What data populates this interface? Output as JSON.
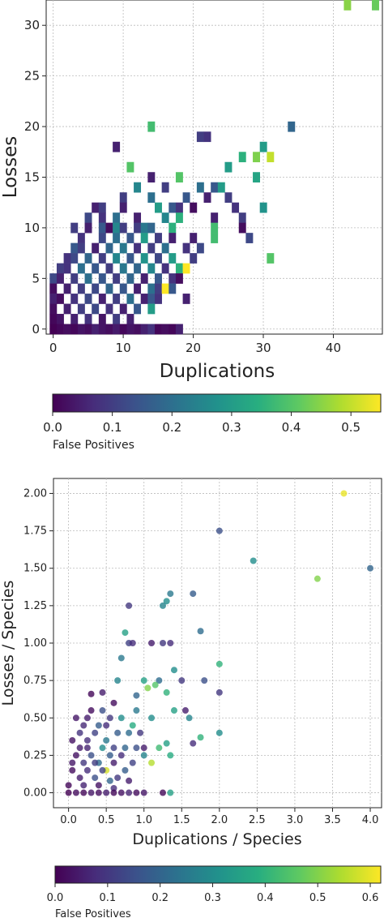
{
  "chart_data": [
    {
      "type": "heatmap",
      "xlabel": "Duplications",
      "ylabel": "Losses",
      "xlim": [
        -1,
        47
      ],
      "ylim": [
        -0.5,
        32.5
      ],
      "xticks": [
        "0",
        "10",
        "20",
        "30",
        "40"
      ],
      "yticks": [
        "0",
        "5",
        "10",
        "15",
        "20",
        "25",
        "30"
      ],
      "grid": true,
      "colorbar": {
        "label": "False Positives",
        "range": [
          0,
          0.55
        ],
        "ticks": [
          "0.0",
          "0.1",
          "0.2",
          "0.3",
          "0.4",
          "0.5"
        ],
        "colormap": "viridis"
      },
      "cells": [
        [
          42,
          32,
          0.45
        ],
        [
          46,
          32,
          0.42
        ],
        [
          14,
          20,
          0.38
        ],
        [
          21,
          19,
          0.1
        ],
        [
          22,
          19,
          0.08
        ],
        [
          34,
          20,
          0.18
        ],
        [
          9,
          18,
          0.05
        ],
        [
          30,
          18,
          0.3
        ],
        [
          27,
          17,
          0.35
        ],
        [
          29,
          17,
          0.44
        ],
        [
          31,
          17,
          0.5
        ],
        [
          11,
          16,
          0.4
        ],
        [
          25,
          16,
          0.3
        ],
        [
          14,
          15,
          0.05
        ],
        [
          18,
          15,
          0.4
        ],
        [
          29,
          15,
          0.32
        ],
        [
          12,
          14,
          0.25
        ],
        [
          16,
          14,
          0.1
        ],
        [
          21,
          14,
          0.2
        ],
        [
          23,
          14,
          0.15
        ],
        [
          24,
          14,
          0.3
        ],
        [
          10,
          13,
          0.1
        ],
        [
          14,
          13,
          0.2
        ],
        [
          19,
          13,
          0.15
        ],
        [
          22,
          13,
          0.05
        ],
        [
          25,
          13,
          0.1
        ],
        [
          30,
          12,
          0.28
        ],
        [
          6,
          12,
          0.05
        ],
        [
          7,
          12,
          0.1
        ],
        [
          10,
          12,
          0.05
        ],
        [
          15,
          12,
          0.3
        ],
        [
          17,
          12,
          0.15
        ],
        [
          18,
          12,
          0.08
        ],
        [
          20,
          12,
          0.02
        ],
        [
          26,
          12,
          0.08
        ],
        [
          5,
          11,
          0.12
        ],
        [
          7,
          11,
          0.08
        ],
        [
          9,
          11,
          0.2
        ],
        [
          12,
          11,
          0.05
        ],
        [
          16,
          11,
          0.25
        ],
        [
          18,
          11,
          0.35
        ],
        [
          23,
          11,
          0.05
        ],
        [
          27,
          11,
          0.1
        ],
        [
          3,
          10,
          0.1
        ],
        [
          5,
          10,
          0.05
        ],
        [
          7,
          10,
          0.15
        ],
        [
          8,
          10,
          0.02
        ],
        [
          9,
          10,
          0.25
        ],
        [
          10,
          10,
          0.1
        ],
        [
          12,
          10,
          0.1
        ],
        [
          13,
          10,
          0.22
        ],
        [
          14,
          10,
          0.18
        ],
        [
          17,
          10,
          0.35
        ],
        [
          23,
          10,
          0.38
        ],
        [
          27,
          10,
          0.02
        ],
        [
          4,
          9,
          0.08
        ],
        [
          7,
          9,
          0.12
        ],
        [
          9,
          9,
          0.2
        ],
        [
          11,
          9,
          0.15
        ],
        [
          13,
          9,
          0.3
        ],
        [
          15,
          9,
          0.1
        ],
        [
          17,
          9,
          0.05
        ],
        [
          20,
          9,
          0.05
        ],
        [
          23,
          9,
          0.38
        ],
        [
          28,
          9,
          0.12
        ],
        [
          3,
          8,
          0.15
        ],
        [
          4,
          8,
          0.1
        ],
        [
          6,
          8,
          0.05
        ],
        [
          8,
          8,
          0.18
        ],
        [
          10,
          8,
          0.22
        ],
        [
          12,
          8,
          0.08
        ],
        [
          14,
          8,
          0.1
        ],
        [
          16,
          8,
          0.2
        ],
        [
          19,
          8,
          0.08
        ],
        [
          21,
          8,
          0.12
        ],
        [
          2,
          7,
          0.08
        ],
        [
          3,
          7,
          0.12
        ],
        [
          5,
          7,
          0.18
        ],
        [
          7,
          7,
          0.1
        ],
        [
          9,
          7,
          0.25
        ],
        [
          11,
          7,
          0.15
        ],
        [
          13,
          7,
          0.28
        ],
        [
          15,
          7,
          0.12
        ],
        [
          17,
          7,
          0.3
        ],
        [
          20,
          7,
          0.1
        ],
        [
          31,
          7,
          0.4
        ],
        [
          1,
          6,
          0.1
        ],
        [
          2,
          6,
          0.08
        ],
        [
          4,
          6,
          0.2
        ],
        [
          6,
          6,
          0.15
        ],
        [
          8,
          6,
          0.1
        ],
        [
          10,
          6,
          0.22
        ],
        [
          12,
          6,
          0.18
        ],
        [
          14,
          6,
          0.25
        ],
        [
          16,
          6,
          0.08
        ],
        [
          18,
          6,
          0.35
        ],
        [
          19,
          6,
          0.55
        ],
        [
          0,
          5,
          0.12
        ],
        [
          1,
          5,
          0.05
        ],
        [
          3,
          5,
          0.1
        ],
        [
          5,
          5,
          0.2
        ],
        [
          7,
          5,
          0.15
        ],
        [
          9,
          5,
          0.1
        ],
        [
          11,
          5,
          0.18
        ],
        [
          13,
          5,
          0.05
        ],
        [
          15,
          5,
          0.15
        ],
        [
          17,
          5,
          0.08
        ],
        [
          18,
          5,
          0.02
        ],
        [
          0,
          4,
          0.02
        ],
        [
          2,
          4,
          0.05
        ],
        [
          4,
          4,
          0.1
        ],
        [
          6,
          4,
          0.12
        ],
        [
          8,
          4,
          0.18
        ],
        [
          10,
          4,
          0.15
        ],
        [
          12,
          4,
          0.05
        ],
        [
          14,
          4,
          0.2
        ],
        [
          15,
          4,
          0.1
        ],
        [
          16,
          4,
          0.55
        ],
        [
          17,
          4,
          0.15
        ],
        [
          0,
          3,
          0.05
        ],
        [
          1,
          3,
          0.02
        ],
        [
          3,
          3,
          0.08
        ],
        [
          5,
          3,
          0.12
        ],
        [
          7,
          3,
          0.05
        ],
        [
          9,
          3,
          0.1
        ],
        [
          11,
          3,
          0.2
        ],
        [
          13,
          3,
          0.05
        ],
        [
          14,
          3,
          0.15
        ],
        [
          15,
          3,
          0.08
        ],
        [
          19,
          3,
          0.05
        ],
        [
          0,
          2,
          0.02
        ],
        [
          2,
          2,
          0.05
        ],
        [
          4,
          2,
          0.1
        ],
        [
          6,
          2,
          0.12
        ],
        [
          8,
          2,
          0.08
        ],
        [
          10,
          2,
          0.05
        ],
        [
          12,
          2,
          0.15
        ],
        [
          14,
          2,
          0.3
        ],
        [
          0,
          1,
          0.01
        ],
        [
          1,
          1,
          0.03
        ],
        [
          3,
          1,
          0.05
        ],
        [
          5,
          1,
          0.08
        ],
        [
          7,
          1,
          0.03
        ],
        [
          9,
          1,
          0.1
        ],
        [
          11,
          1,
          0.05
        ],
        [
          0,
          0,
          0.0
        ],
        [
          1,
          0,
          0.01
        ],
        [
          2,
          0,
          0.02
        ],
        [
          3,
          0,
          0.01
        ],
        [
          4,
          0,
          0.03
        ],
        [
          5,
          0,
          0.02
        ],
        [
          6,
          0,
          0.05
        ],
        [
          7,
          0,
          0.03
        ],
        [
          8,
          0,
          0.02
        ],
        [
          9,
          0,
          0.04
        ],
        [
          10,
          0,
          0.01
        ],
        [
          11,
          0,
          0.03
        ],
        [
          12,
          0,
          0.02
        ],
        [
          13,
          0,
          0.05
        ],
        [
          14,
          0,
          0.08
        ],
        [
          15,
          0,
          0.01
        ],
        [
          16,
          0,
          0.02
        ],
        [
          17,
          0,
          0.01
        ],
        [
          18,
          0,
          0.05
        ]
      ]
    },
    {
      "type": "scatter",
      "xlabel": "Duplications / Species",
      "ylabel": "Losses / Species",
      "xlim": [
        -0.2,
        4.15
      ],
      "ylim": [
        -0.1,
        2.1
      ],
      "xticks": [
        "0.0",
        "0.5",
        "1.0",
        "1.5",
        "2.0",
        "2.5",
        "3.0",
        "3.5",
        "4.0"
      ],
      "yticks": [
        "0.00",
        "0.25",
        "0.50",
        "0.75",
        "1.00",
        "1.25",
        "1.50",
        "1.75",
        "2.00"
      ],
      "grid": true,
      "colorbar": {
        "label": "False Positives",
        "range": [
          0,
          0.62
        ],
        "ticks": [
          "0.0",
          "0.1",
          "0.2",
          "0.3",
          "0.4",
          "0.5",
          "0.6"
        ],
        "colormap": "viridis"
      },
      "points": [
        [
          3.65,
          2.0,
          0.6
        ],
        [
          2.0,
          1.75,
          0.15
        ],
        [
          2.45,
          1.55,
          0.3
        ],
        [
          3.3,
          1.43,
          0.5
        ],
        [
          4.0,
          1.5,
          0.2
        ],
        [
          1.35,
          1.33,
          0.25
        ],
        [
          1.3,
          1.28,
          0.3
        ],
        [
          1.25,
          1.25,
          0.28
        ],
        [
          1.65,
          1.33,
          0.18
        ],
        [
          0.8,
          1.25,
          0.1
        ],
        [
          1.75,
          1.08,
          0.22
        ],
        [
          0.75,
          1.07,
          0.35
        ],
        [
          0.8,
          1.0,
          0.12
        ],
        [
          0.85,
          1.0,
          0.08
        ],
        [
          1.1,
          1.0,
          0.05
        ],
        [
          1.25,
          1.0,
          0.1
        ],
        [
          1.35,
          1.0,
          0.08
        ],
        [
          0.7,
          0.9,
          0.25
        ],
        [
          1.4,
          0.82,
          0.3
        ],
        [
          2.0,
          0.86,
          0.4
        ],
        [
          0.65,
          0.75,
          0.28
        ],
        [
          1.0,
          0.75,
          0.35
        ],
        [
          1.2,
          0.75,
          0.22
        ],
        [
          1.5,
          0.75,
          0.1
        ],
        [
          1.8,
          0.75,
          0.15
        ],
        [
          1.15,
          0.72,
          0.45
        ],
        [
          1.05,
          0.7,
          0.5
        ],
        [
          1.3,
          0.67,
          0.4
        ],
        [
          0.9,
          0.65,
          0.2
        ],
        [
          0.45,
          0.67,
          0.05
        ],
        [
          2.0,
          0.67,
          0.1
        ],
        [
          1.4,
          0.55,
          0.35
        ],
        [
          1.55,
          0.55,
          0.05
        ],
        [
          1.1,
          0.5,
          0.3
        ],
        [
          1.6,
          0.5,
          0.28
        ],
        [
          0.85,
          0.45,
          0.38
        ],
        [
          1.75,
          0.37,
          0.4
        ],
        [
          2.0,
          0.4,
          0.3
        ],
        [
          1.3,
          0.33,
          0.35
        ],
        [
          1.65,
          0.33,
          0.08
        ],
        [
          1.2,
          0.3,
          0.42
        ],
        [
          1.0,
          0.25,
          0.28
        ],
        [
          1.35,
          0.25,
          0.38
        ],
        [
          1.1,
          0.2,
          0.55
        ],
        [
          0.5,
          0.15,
          0.58
        ],
        [
          1.0,
          0.3,
          0.05
        ],
        [
          0.6,
          0.6,
          0.02
        ],
        [
          0.3,
          0.66,
          0.01
        ],
        [
          0.55,
          0.5,
          0.1
        ],
        [
          0.7,
          0.5,
          0.3
        ],
        [
          0.9,
          0.55,
          0.25
        ],
        [
          0.4,
          0.45,
          0.18
        ],
        [
          0.35,
          0.4,
          0.12
        ],
        [
          0.5,
          0.35,
          0.25
        ],
        [
          0.65,
          0.4,
          0.18
        ],
        [
          0.8,
          0.4,
          0.22
        ],
        [
          0.95,
          0.4,
          0.1
        ],
        [
          0.25,
          0.35,
          0.08
        ],
        [
          0.15,
          0.3,
          0.05
        ],
        [
          0.45,
          0.3,
          0.3
        ],
        [
          0.6,
          0.3,
          0.12
        ],
        [
          0.75,
          0.3,
          0.2
        ],
        [
          0.9,
          0.3,
          0.15
        ],
        [
          0.1,
          0.25,
          0.03
        ],
        [
          0.3,
          0.25,
          0.15
        ],
        [
          0.55,
          0.25,
          0.18
        ],
        [
          0.7,
          0.25,
          0.08
        ],
        [
          0.85,
          0.2,
          0.12
        ],
        [
          0.2,
          0.2,
          0.1
        ],
        [
          0.4,
          0.2,
          0.22
        ],
        [
          0.6,
          0.2,
          0.05
        ],
        [
          0.75,
          0.15,
          0.18
        ],
        [
          0.05,
          0.15,
          0.02
        ],
        [
          0.25,
          0.15,
          0.08
        ],
        [
          0.45,
          0.15,
          0.12
        ],
        [
          0.65,
          0.1,
          0.1
        ],
        [
          0.15,
          0.1,
          0.05
        ],
        [
          0.35,
          0.1,
          0.15
        ],
        [
          0.55,
          0.08,
          0.2
        ],
        [
          0.8,
          0.08,
          0.05
        ],
        [
          0.0,
          0.05,
          0.01
        ],
        [
          0.2,
          0.05,
          0.06
        ],
        [
          0.4,
          0.05,
          0.03
        ],
        [
          0.6,
          0.03,
          0.08
        ],
        [
          0.0,
          0.0,
          0.0
        ],
        [
          0.1,
          0.0,
          0.02
        ],
        [
          0.2,
          0.0,
          0.01
        ],
        [
          0.3,
          0.0,
          0.04
        ],
        [
          0.4,
          0.0,
          0.02
        ],
        [
          0.5,
          0.0,
          0.05
        ],
        [
          0.6,
          0.0,
          0.01
        ],
        [
          0.7,
          0.0,
          0.03
        ],
        [
          0.8,
          0.0,
          0.06
        ],
        [
          0.9,
          0.0,
          0.02
        ],
        [
          1.0,
          0.0,
          0.04
        ],
        [
          1.35,
          0.0,
          0.35
        ],
        [
          1.25,
          0.0,
          0.01
        ],
        [
          0.1,
          0.5,
          0.04
        ],
        [
          0.2,
          0.45,
          0.07
        ],
        [
          0.3,
          0.55,
          0.02
        ],
        [
          0.15,
          0.4,
          0.09
        ],
        [
          0.25,
          0.5,
          0.05
        ],
        [
          0.05,
          0.35,
          0.03
        ],
        [
          0.45,
          0.55,
          0.15
        ],
        [
          0.5,
          0.45,
          0.08
        ],
        [
          0.35,
          0.2,
          0.11
        ],
        [
          0.05,
          0.2,
          0.04
        ],
        [
          0.25,
          0.3,
          0.06
        ]
      ]
    }
  ]
}
